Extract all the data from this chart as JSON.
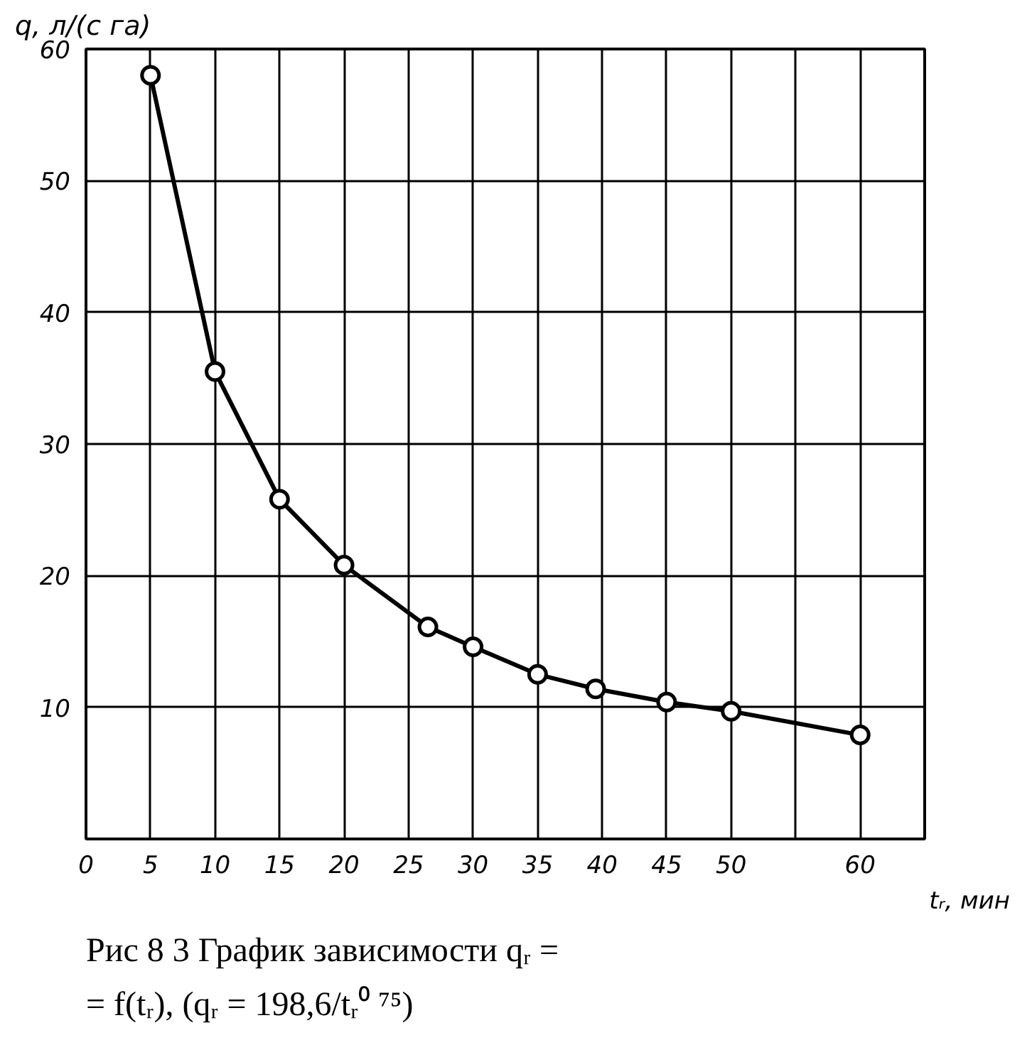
{
  "chart_data": {
    "type": "line",
    "ylabel": "q, л/(с га)",
    "xlabel": "tᵣ, мин",
    "annotations": [
      "Рис 8 3 График зависимости qᵣ =",
      "= f(tᵣ), (qᵣ = 198,6/tᵣ⁰ ⁷⁵)"
    ],
    "x": [
      5,
      10,
      15,
      20,
      26.5,
      30,
      35,
      39.5,
      45,
      50,
      60
    ],
    "values": [
      58,
      35.5,
      25.8,
      20.8,
      16.1,
      14.6,
      12.5,
      11.4,
      10.4,
      9.7,
      7.9
    ],
    "color": "#000000",
    "marker": "circle",
    "line_style": "solid",
    "grid": true,
    "xlim": [
      0,
      65
    ],
    "xticks": [
      0,
      5,
      10,
      15,
      20,
      25,
      30,
      35,
      40,
      45,
      50,
      {
        "value": 55,
        "label": null
      },
      60
    ],
    "ylim": [
      0,
      60
    ],
    "yticks": [
      10,
      20,
      30,
      40,
      50,
      60
    ]
  }
}
